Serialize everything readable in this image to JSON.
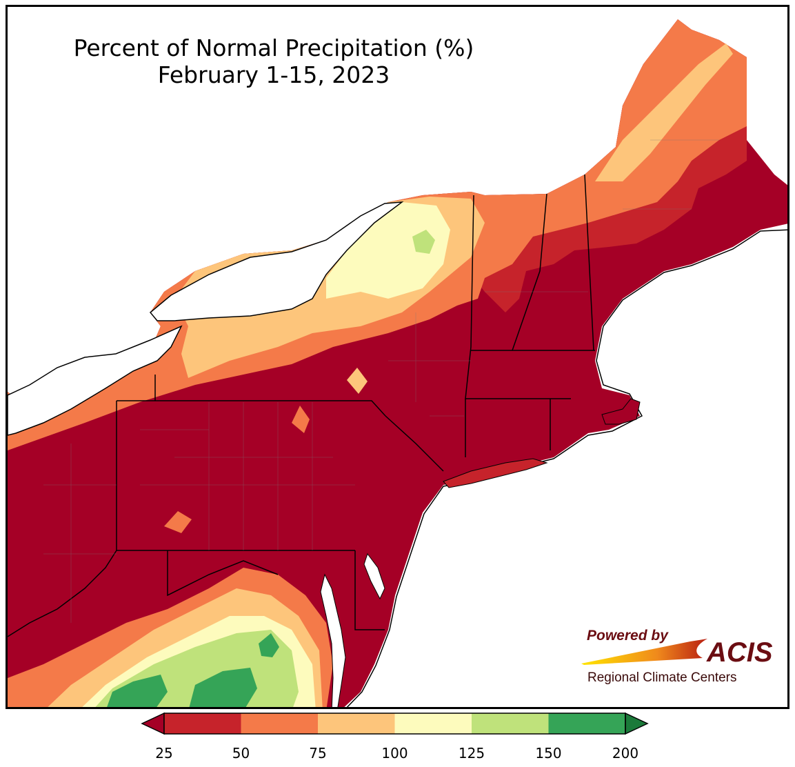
{
  "map": {
    "title_line1": "Percent of Normal Precipitation (%)",
    "title_line2": "February 1-15, 2023",
    "region": "Northeast United States",
    "background_color": "#ffffff",
    "water_color": "#ffffff",
    "border_color": "#000000",
    "county_line_color": "#777777"
  },
  "legend": {
    "ticks": [
      "25",
      "50",
      "75",
      "100",
      "125",
      "150",
      "200"
    ],
    "bins": [
      {
        "range": "<25",
        "color": "#a50026"
      },
      {
        "range": "25-50",
        "color": "#c6232b"
      },
      {
        "range": "50-75",
        "color": "#f47a49"
      },
      {
        "range": "75-100",
        "color": "#fdc57b"
      },
      {
        "range": "100-125",
        "color": "#fdfbbd"
      },
      {
        "range": "125-150",
        "color": "#bfe27b"
      },
      {
        "range": "150-200",
        "color": "#35a457"
      },
      {
        "range": ">200",
        "color": "#1b7a3a"
      }
    ]
  },
  "logo": {
    "powered_by": "Powered by",
    "name": "ACIS",
    "subtitle": "Regional Climate Centers"
  }
}
